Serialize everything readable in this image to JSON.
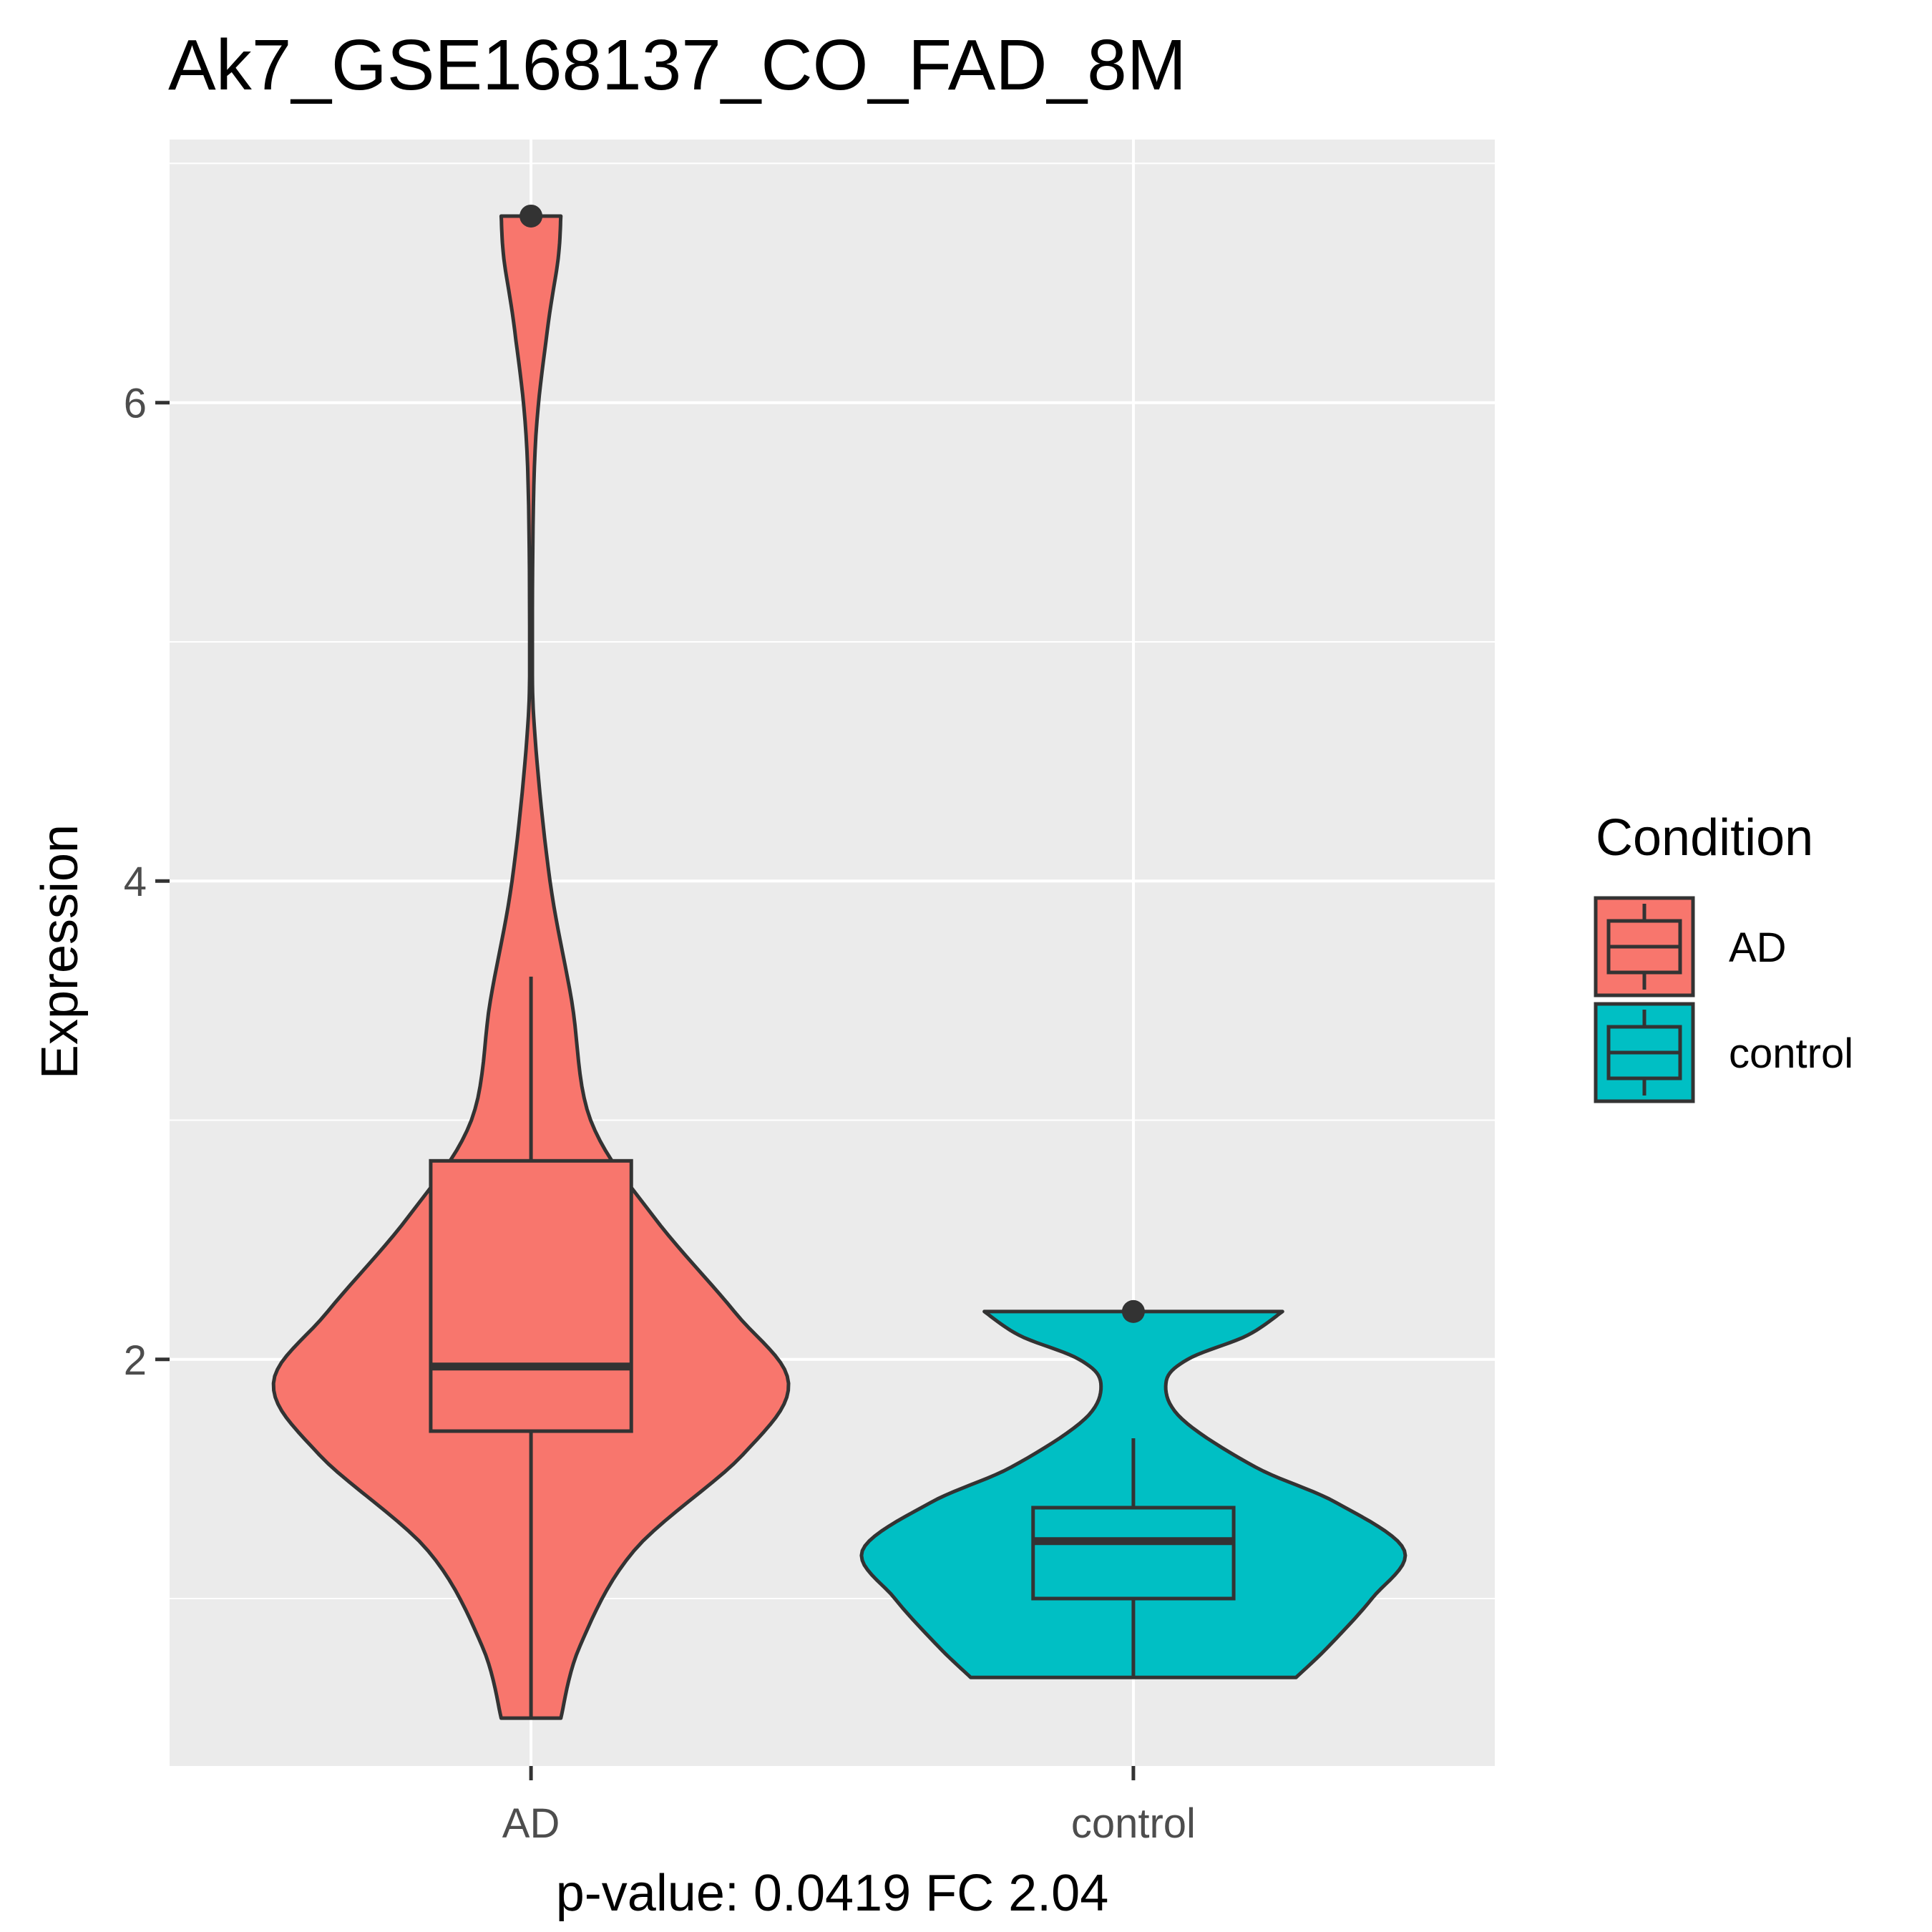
{
  "chart_data": {
    "type": "violin",
    "title": "Ak7_GSE168137_CO_FAD_8M",
    "xlabel": "p-value: 0.0419 FC 2.04",
    "ylabel": "Expression",
    "categories": [
      "AD",
      "control"
    ],
    "ylim": [
      0.3,
      7.1
    ],
    "y_ticks": [
      2,
      4,
      6
    ],
    "grid": true,
    "legend": {
      "title": "Condition",
      "position": "right",
      "entries": [
        "AD",
        "control"
      ]
    },
    "colors": {
      "AD": "#F8766D",
      "control": "#00BFC4",
      "panel": "#EBEBEB",
      "grid": "#FFFFFF",
      "outline": "#333333"
    },
    "series": [
      {
        "category": "AD",
        "box": {
          "lower_whisker": 0.5,
          "q1": 1.7,
          "median": 1.97,
          "q3": 2.83,
          "upper_whisker": 3.6
        },
        "outliers": [
          6.78
        ],
        "violin_range": [
          0.5,
          6.78
        ],
        "density": [
          [
            0.5,
            0.11
          ],
          [
            0.8,
            0.18
          ],
          [
            1.2,
            0.38
          ],
          [
            1.6,
            0.78
          ],
          [
            1.9,
            0.95
          ],
          [
            2.2,
            0.75
          ],
          [
            2.6,
            0.45
          ],
          [
            3.0,
            0.22
          ],
          [
            3.5,
            0.15
          ],
          [
            4.0,
            0.07
          ],
          [
            4.6,
            0.015
          ],
          [
            5.0,
            0.005
          ],
          [
            5.8,
            0.015
          ],
          [
            6.3,
            0.06
          ],
          [
            6.6,
            0.1
          ],
          [
            6.78,
            0.11
          ]
        ]
      },
      {
        "category": "control",
        "box": {
          "lower_whisker": 0.67,
          "q1": 1.0,
          "median": 1.24,
          "q3": 1.38,
          "upper_whisker": 1.67
        },
        "outliers": [
          2.2
        ],
        "violin_range": [
          0.67,
          2.2
        ],
        "density": [
          [
            0.67,
            0.6
          ],
          [
            0.8,
            0.72
          ],
          [
            1.0,
            0.88
          ],
          [
            1.2,
            1.0
          ],
          [
            1.4,
            0.75
          ],
          [
            1.55,
            0.45
          ],
          [
            1.75,
            0.18
          ],
          [
            1.9,
            0.12
          ],
          [
            2.0,
            0.2
          ],
          [
            2.1,
            0.42
          ],
          [
            2.2,
            0.55
          ]
        ]
      }
    ]
  }
}
